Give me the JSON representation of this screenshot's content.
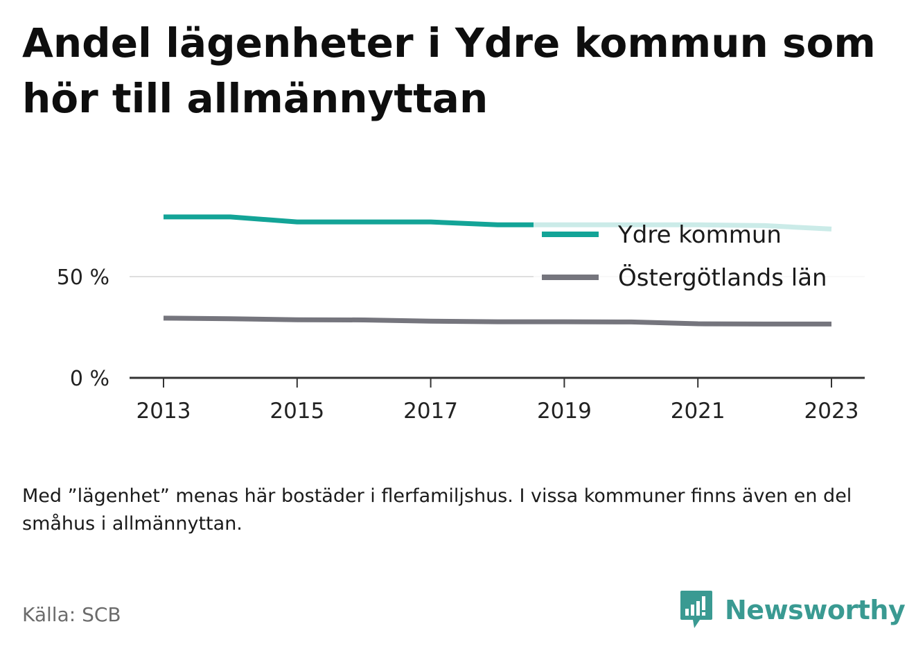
{
  "header": {
    "title": "Andel lägenheter i Ydre kommun som hör till allmännyttan"
  },
  "footer": {
    "note": "Med ”lägenhet” menas här bostäder i flerfamiljshus. I vissa kommuner finns även en del småhus i allmännyttan.",
    "source": "Källa: SCB",
    "brand": "Newsworthy"
  },
  "colors": {
    "series_1": "#13a497",
    "series_2": "#75757d",
    "gridline": "#dedede",
    "axis": "#333333",
    "brand": "#3a9a92"
  },
  "chart_data": {
    "type": "line",
    "x": [
      2013,
      2014,
      2015,
      2016,
      2017,
      2018,
      2019,
      2020,
      2021,
      2022,
      2023
    ],
    "x_ticks": [
      "2013",
      "2015",
      "2017",
      "2019",
      "2021",
      "2023"
    ],
    "y_ticks": [
      "0 %",
      "50 %"
    ],
    "ylim": [
      0,
      80
    ],
    "grid": true,
    "legend_position": "right",
    "series": [
      {
        "name": "Ydre kommun",
        "values": [
          79.5,
          79.5,
          77,
          77,
          77,
          75.6,
          75.6,
          75.6,
          75.6,
          75.2,
          73.5
        ]
      },
      {
        "name": "Östergötlands län",
        "values": [
          29.5,
          29.2,
          28.7,
          28.6,
          28.0,
          27.7,
          27.7,
          27.6,
          26.7,
          26.6,
          26.6
        ]
      }
    ]
  }
}
